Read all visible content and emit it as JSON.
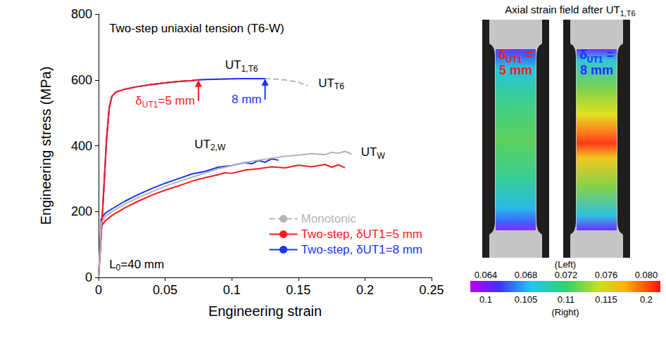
{
  "chart_data": {
    "type": "line",
    "x_label": "Engineering strain",
    "y_label": "Engineering stress (MPa)",
    "xlim": [
      0,
      0.25
    ],
    "xticks": [
      0,
      0.05,
      0.1,
      0.15,
      0.2,
      0.25
    ],
    "ylim": [
      0,
      800
    ],
    "yticks": [
      0,
      200,
      400,
      600,
      800
    ],
    "grid": false,
    "legend": "lower right",
    "series": [
      {
        "name": "Monotonic",
        "color": "#b4b4b4",
        "line_style": "dashed",
        "x": [
          0,
          0.003,
          0.006,
          0.008,
          0.01,
          0.013,
          0.02,
          0.03,
          0.04,
          0.05,
          0.06,
          0.07,
          0.075,
          0.08,
          0.09,
          0.1,
          0.11,
          0.12,
          0.125,
          0.13,
          0.14,
          0.15,
          0.157
        ],
        "values": [
          0,
          200,
          420,
          515,
          550,
          563,
          572,
          580,
          586,
          591,
          595,
          598,
          600,
          601,
          602,
          603,
          604,
          604,
          604,
          603,
          600,
          593,
          582
        ]
      },
      {
        "name": "Monotonic",
        "color": "#b4b4b4",
        "line_style": "solid",
        "x": [
          0,
          0.002,
          0.005,
          0.01,
          0.02,
          0.03,
          0.04,
          0.05,
          0.06,
          0.07,
          0.08,
          0.09,
          0.1,
          0.11,
          0.12,
          0.13,
          0.14,
          0.15,
          0.16,
          0.17,
          0.175,
          0.18,
          0.185,
          0.19
        ],
        "values": [
          0,
          165,
          185,
          200,
          223,
          243,
          260,
          277,
          291,
          304,
          317,
          330,
          339,
          349,
          356,
          362,
          368,
          371,
          376,
          373,
          380,
          377,
          383,
          375
        ]
      },
      {
        "name": "Two-step, δUT1=5 mm",
        "color": "#ff1a1a",
        "line_style": "solid",
        "x": [
          0,
          0.003,
          0.006,
          0.008,
          0.01,
          0.013,
          0.02,
          0.03,
          0.04,
          0.05,
          0.06,
          0.07,
          0.075
        ],
        "values": [
          0,
          200,
          420,
          515,
          550,
          563,
          572,
          580,
          586,
          591,
          595,
          598,
          600
        ]
      },
      {
        "name": "Two-step, δUT1=5 mm",
        "color": "#ff1a1a",
        "line_style": "solid",
        "x": [
          0,
          0.002,
          0.005,
          0.01,
          0.02,
          0.03,
          0.04,
          0.05,
          0.06,
          0.07,
          0.08,
          0.09,
          0.095,
          0.1,
          0.11,
          0.12,
          0.13,
          0.14,
          0.15,
          0.16,
          0.17,
          0.175,
          0.18,
          0.185
        ],
        "values": [
          0,
          155,
          172,
          188,
          212,
          232,
          250,
          265,
          278,
          292,
          303,
          312,
          318,
          316,
          326,
          330,
          336,
          333,
          341,
          336,
          343,
          335,
          342,
          333
        ]
      },
      {
        "name": "Two-step, δUT1=8 mm",
        "color": "#1a33ff",
        "line_style": "solid",
        "x": [
          0,
          0.003,
          0.006,
          0.008,
          0.01,
          0.013,
          0.02,
          0.03,
          0.04,
          0.05,
          0.06,
          0.07,
          0.075,
          0.08,
          0.09,
          0.1,
          0.11,
          0.12,
          0.125
        ],
        "values": [
          0,
          200,
          420,
          515,
          550,
          563,
          572,
          580,
          586,
          591,
          595,
          598,
          600,
          601,
          602,
          603,
          604,
          604,
          604
        ]
      },
      {
        "name": "Two-step, δUT1=8 mm",
        "color": "#1a33ff",
        "line_style": "solid",
        "x": [
          0,
          0.002,
          0.005,
          0.01,
          0.02,
          0.03,
          0.04,
          0.05,
          0.06,
          0.07,
          0.08,
          0.09,
          0.1,
          0.11,
          0.115,
          0.12,
          0.125,
          0.13,
          0.135
        ],
        "values": [
          0,
          178,
          195,
          208,
          232,
          252,
          270,
          286,
          300,
          314,
          322,
          335,
          340,
          349,
          345,
          355,
          350,
          360,
          356
        ]
      }
    ],
    "annotations": [
      {
        "text": "Two-step uniaxial tension (T6-W)",
        "x": 0.008,
        "y": 757,
        "color": "#000000"
      },
      {
        "text": "UT",
        "subscript": "1,T6",
        "x": 0.095,
        "y": 645,
        "color": "#000000"
      },
      {
        "text": "UT",
        "subscript": "T6",
        "x": 0.165,
        "y": 590,
        "color": "#000000"
      },
      {
        "text": "UT",
        "subscript": "2,W",
        "x": 0.072,
        "y": 405,
        "color": "#000000"
      },
      {
        "text": "UT",
        "subscript": "W",
        "x": 0.197,
        "y": 380,
        "color": "#000000"
      },
      {
        "text": "δ",
        "subscript": "UT1",
        "suffix": "=5 mm",
        "x": 0.075,
        "y": 600,
        "color": "#ff1a1a",
        "marker": "arrow"
      },
      {
        "text": "8 mm",
        "x": 0.125,
        "y": 604,
        "color": "#1a33ff",
        "marker": "arrow"
      },
      {
        "text": "L",
        "subscript": "0",
        "suffix": "=40 mm",
        "x": 0.008,
        "y": 40,
        "color": "#000000"
      }
    ]
  },
  "strain_field_panel": {
    "title": {
      "text": "Axial strain field after UT",
      "subscript": "1,T6"
    },
    "specimens": [
      {
        "text": "δ",
        "subscript": "UT1",
        "suffix": " = 5 mm",
        "color": "#ff1a1a"
      },
      {
        "text": "δ",
        "subscript": "UT1",
        "suffix": " = 8 mm",
        "color": "#1a33ff"
      }
    ],
    "colorbar": {
      "top_caption": "(Left)",
      "top_labels": [
        "0.064",
        "0.068",
        "0.072",
        "0.076",
        "0.080"
      ],
      "bottom_labels": [
        "0.1",
        "0.105",
        "0.11",
        "0.115",
        "0.2"
      ],
      "bottom_caption": "(Right)"
    }
  }
}
